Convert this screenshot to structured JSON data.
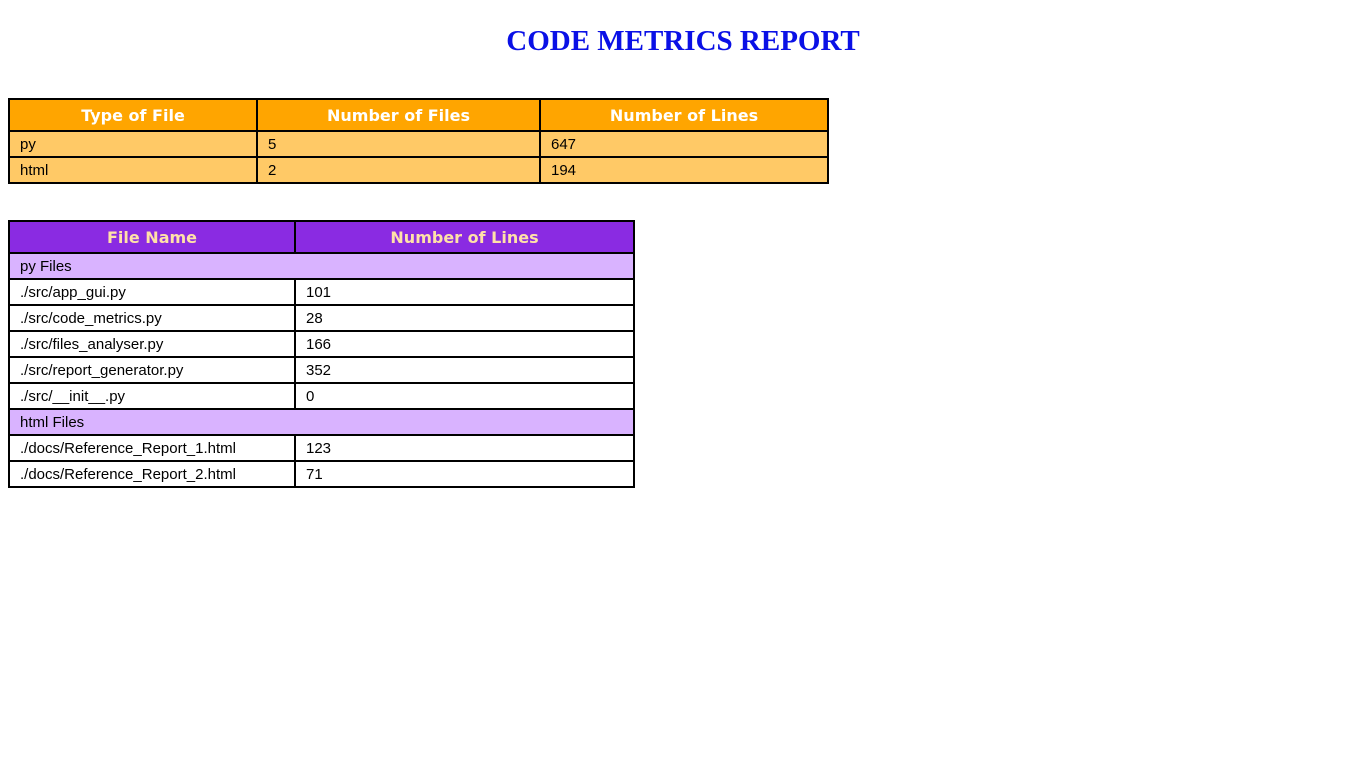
{
  "title": "CODE METRICS REPORT",
  "summary_table": {
    "headers": [
      "Type of File",
      "Number of Files",
      "Number of Lines"
    ],
    "rows": [
      [
        "py",
        "5",
        "647"
      ],
      [
        "html",
        "2",
        "194"
      ]
    ]
  },
  "detail_table": {
    "headers": [
      "File Name",
      "Number of Lines"
    ],
    "groups": [
      {
        "label": "py Files",
        "rows": [
          [
            "./src/app_gui.py",
            "101"
          ],
          [
            "./src/code_metrics.py",
            "28"
          ],
          [
            "./src/files_analyser.py",
            "166"
          ],
          [
            "./src/report_generator.py",
            "352"
          ],
          [
            "./src/__init__.py",
            "0"
          ]
        ]
      },
      {
        "label": "html Files",
        "rows": [
          [
            "./docs/Reference_Report_1.html",
            "123"
          ],
          [
            "./docs/Reference_Report_2.html",
            "71"
          ]
        ]
      }
    ]
  },
  "colors": {
    "title": "#0a10e6",
    "summary_header": "#ffa500",
    "summary_row": "#ffc966",
    "detail_header": "#8a2be2",
    "detail_header_text": "#ffe1a8",
    "detail_group_row": "#d9b3ff"
  }
}
